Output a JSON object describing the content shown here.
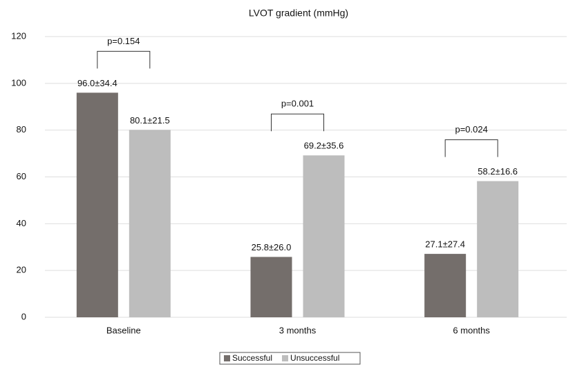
{
  "chart_data": {
    "type": "bar",
    "title": "LVOT gradient (mmHg)",
    "categories": [
      "Baseline",
      "3 months",
      "6 months"
    ],
    "series": [
      {
        "name": "Successful",
        "color": "#746e6b",
        "values": [
          96.0,
          25.8,
          27.1
        ],
        "value_labels": [
          "96.0±34.4",
          "25.8±26.0",
          "27.1±27.4"
        ]
      },
      {
        "name": "Unsuccessful",
        "color": "#bdbdbd",
        "values": [
          80.1,
          69.2,
          58.2
        ],
        "value_labels": [
          "80.1±21.5",
          "69.2±35.6",
          "58.2±16.6"
        ]
      }
    ],
    "annotations": [
      "p=0.154",
      "p=0.001",
      "p=0.024"
    ],
    "ylim": [
      0,
      120
    ],
    "yticks": [
      0,
      20,
      40,
      60,
      80,
      100,
      120
    ],
    "grid": true,
    "legend": "bottom"
  }
}
